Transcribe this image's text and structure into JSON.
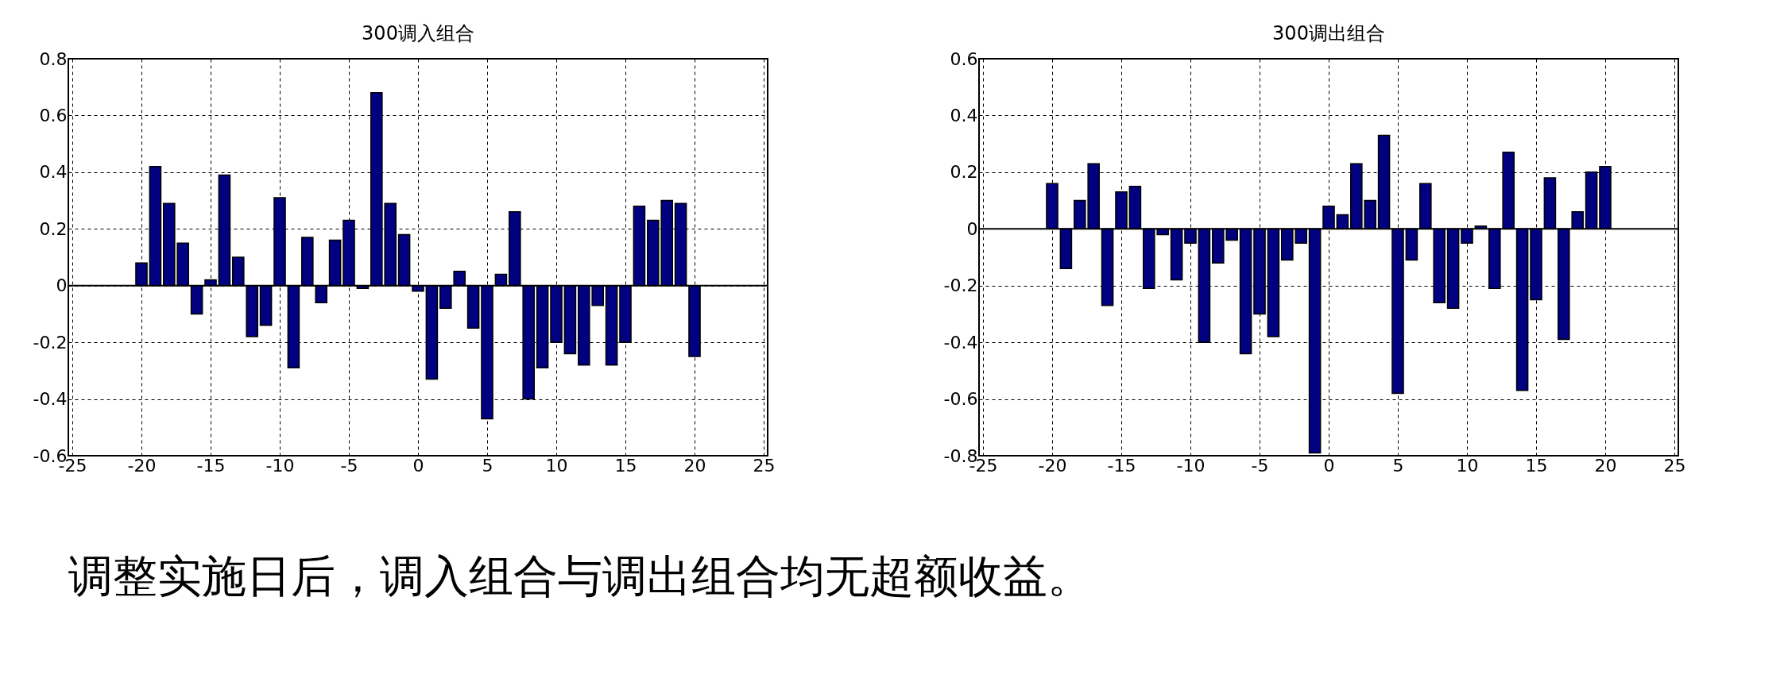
{
  "chart_data": [
    {
      "type": "bar",
      "title": "300调入组合",
      "x": [
        -20,
        -19,
        -18,
        -17,
        -16,
        -15,
        -14,
        -13,
        -12,
        -11,
        -10,
        -9,
        -8,
        -7,
        -6,
        -5,
        -4,
        -3,
        -2,
        -1,
        0,
        1,
        2,
        3,
        4,
        5,
        6,
        7,
        8,
        9,
        10,
        11,
        12,
        13,
        14,
        15,
        16,
        17,
        18,
        19,
        20
      ],
      "values": [
        0.08,
        0.42,
        0.29,
        0.15,
        -0.1,
        0.02,
        0.39,
        0.1,
        -0.18,
        -0.14,
        0.31,
        -0.29,
        0.17,
        -0.06,
        0.16,
        0.23,
        -0.01,
        0.68,
        0.29,
        0.18,
        -0.02,
        -0.33,
        -0.08,
        0.05,
        -0.15,
        -0.47,
        0.04,
        0.26,
        -0.4,
        -0.29,
        -0.2,
        -0.24,
        -0.28,
        -0.07,
        -0.28,
        -0.2,
        0.28,
        0.23,
        0.3,
        0.29,
        -0.25
      ],
      "color": "#000080",
      "xlim": [
        -25,
        25
      ],
      "xticks": [
        -25,
        -20,
        -15,
        -10,
        -5,
        0,
        5,
        10,
        15,
        20,
        25
      ],
      "ylim": [
        -0.6,
        0.8
      ],
      "yticks": [
        -0.6,
        -0.4,
        -0.2,
        0,
        0.2,
        0.4,
        0.6,
        0.8
      ],
      "ref_lines": [
        {
          "axis": "y",
          "value": 0,
          "color": "#000000"
        }
      ],
      "grid": true
    },
    {
      "type": "bar",
      "title": "300调出组合",
      "x": [
        -20,
        -19,
        -18,
        -17,
        -16,
        -15,
        -14,
        -13,
        -12,
        -11,
        -10,
        -9,
        -8,
        -7,
        -6,
        -5,
        -4,
        -3,
        -2,
        -1,
        0,
        1,
        2,
        3,
        4,
        5,
        6,
        7,
        8,
        9,
        10,
        11,
        12,
        13,
        14,
        15,
        16,
        17,
        18,
        19,
        20
      ],
      "values": [
        0.16,
        -0.14,
        0.1,
        0.23,
        -0.27,
        0.13,
        0.15,
        -0.21,
        -0.02,
        -0.18,
        -0.05,
        -0.4,
        -0.12,
        -0.04,
        -0.44,
        -0.3,
        -0.38,
        -0.11,
        -0.05,
        -0.79,
        0.08,
        0.05,
        0.23,
        0.1,
        0.33,
        -0.58,
        -0.11,
        0.16,
        -0.26,
        -0.28,
        -0.05,
        0.01,
        -0.21,
        0.27,
        -0.57,
        -0.25,
        0.18,
        -0.39,
        0.06,
        0.2,
        0.22
      ],
      "color": "#000080",
      "xlim": [
        -25,
        25
      ],
      "xticks": [
        -25,
        -20,
        -15,
        -10,
        -5,
        0,
        5,
        10,
        15,
        20,
        25
      ],
      "ylim": [
        -0.8,
        0.6
      ],
      "yticks": [
        -0.8,
        -0.6,
        -0.4,
        -0.2,
        0,
        0.2,
        0.4,
        0.6
      ],
      "ref_lines": [
        {
          "axis": "y",
          "value": 0,
          "color": "#000000"
        }
      ],
      "grid": true,
      "annotations": [
        "调整实施日后，调入组合与调出组合均无超额收益。"
      ]
    }
  ]
}
